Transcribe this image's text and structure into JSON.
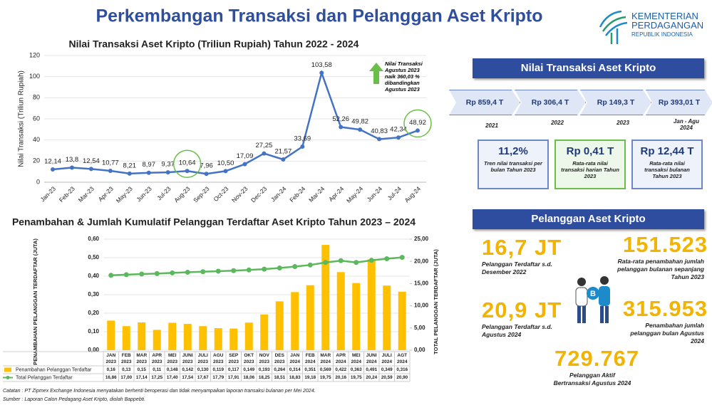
{
  "title": "Perkembangan Transaksi dan Pelanggan Aset Kripto",
  "logo": {
    "lines": [
      "KEMENTERIAN",
      "PERDAGANGAN",
      "REPUBLIK INDONESIA"
    ]
  },
  "chart_data": [
    {
      "type": "line",
      "title": "Nilai Transaksi Aset Kripto (Triliun Rupiah) Tahun 2022 - 2024",
      "y_label": "Nilai Transaksi (Triliun Rupiah)",
      "categories": [
        "Jan-23",
        "Feb-23",
        "Mar-23",
        "Apr-23",
        "May-23",
        "Jun-23",
        "Jul-23",
        "Aug-23",
        "Sep-23",
        "Oct-23",
        "Nov-23",
        "Dec-23",
        "Jan-24",
        "Feb-24",
        "Mar-24",
        "Apr-24",
        "May-24",
        "Jun-24",
        "Jul-24",
        "Aug-24"
      ],
      "series": [
        {
          "name": "Nilai Transaksi",
          "color": "#4472c4",
          "values": [
            12.14,
            13.8,
            12.54,
            10.77,
            8.21,
            8.97,
            9.37,
            10.64,
            7.96,
            10.5,
            17.09,
            27.25,
            21.57,
            33.69,
            103.58,
            52.26,
            49.82,
            40.83,
            42.34,
            48.92
          ],
          "value_labels": [
            "12,14",
            "13,8",
            "12,54",
            "10,77",
            "8,21",
            "8,97",
            "9,37",
            "10,64",
            "7,96",
            "10,50",
            "17,09",
            "27,25",
            "21,57",
            "33,69",
            "103,58",
            "52,26",
            "49,82",
            "40,83",
            "42,34",
            "48,92"
          ]
        }
      ],
      "ylim": [
        0,
        120
      ],
      "yticks": [
        0,
        20,
        40,
        60,
        80,
        100,
        120
      ],
      "grid": true,
      "annotation": [
        "Nilai Transaksi",
        "Agustus 2023",
        "naik 360,03 %",
        "dibandingkan",
        "Agustus 2023"
      ]
    },
    {
      "type": "bar-line",
      "title": "Penambahan & Jumlah Kumulatif Pelanggan Terdaftar Aset Kripto Tahun 2023 – 2024",
      "y_label": "PENAMBAHAN PELANGGAN TERDAFTAR (JUTA)",
      "y2_label": "TOTAL PELANGGAN TERDAFTAR (JUTA)",
      "categories": [
        "JAN 2023",
        "FEB 2023",
        "MAR 2023",
        "APR 2023",
        "MEI 2023",
        "JUNI 2023",
        "JULI 2023",
        "AGU 2023",
        "SEP 2023",
        "OKT 2023",
        "NOV 2023",
        "DES 2023",
        "JAN 2024",
        "FEB 2024",
        "MAR 2024",
        "APR 2024",
        "MEI 2024",
        "JUNI 2024",
        "JULI 2024",
        "AGT 2024"
      ],
      "series": [
        {
          "name": "Penambahan Pelanggan Terdaftar",
          "color": "#ffc000",
          "kind": "bar",
          "values": [
            0.16,
            0.13,
            0.15,
            0.11,
            0.148,
            0.142,
            0.13,
            0.119,
            0.117,
            0.149,
            0.193,
            0.264,
            0.314,
            0.351,
            0.569,
            0.422,
            0.363,
            0.491,
            0.349,
            0.316
          ],
          "value_labels": [
            "0,16",
            "0,13",
            "0,15",
            "0,11",
            "0,148",
            "0,142",
            "0,130",
            "0,119",
            "0,117",
            "0,149",
            "0,193",
            "0,264",
            "0,314",
            "0,351",
            "0,569",
            "0,422",
            "0,363",
            "0,491",
            "0,349",
            "0,316"
          ]
        },
        {
          "name": "Total Pelanggan Terdaftar",
          "color": "#5cb85c",
          "kind": "line",
          "axis": "y2",
          "values": [
            16.86,
            17.0,
            17.14,
            17.25,
            17.4,
            17.54,
            17.67,
            17.79,
            17.91,
            18.06,
            18.25,
            18.51,
            18.83,
            19.18,
            19.75,
            20.16,
            19.75,
            20.24,
            20.59,
            20.9
          ],
          "value_labels": [
            "16,86",
            "17,00",
            "17,14",
            "17,25",
            "17,40",
            "17,54",
            "17,67",
            "17,79",
            "17,91",
            "18,06",
            "18,25",
            "18,51",
            "18,83",
            "19,18",
            "19,75",
            "20,16",
            "19,75",
            "20,24",
            "20,59",
            "20,90"
          ]
        }
      ],
      "ylim": [
        0,
        0.6
      ],
      "yticks": [
        {
          "value": 0,
          "label": "0,00"
        },
        {
          "value": 0.1,
          "label": "0,10"
        },
        {
          "value": 0.2,
          "label": "0,20"
        },
        {
          "value": 0.3,
          "label": "0,30"
        },
        {
          "value": 0.4,
          "label": "0,40"
        },
        {
          "value": 0.5,
          "label": "0,50"
        },
        {
          "value": 0.6,
          "label": "0,60"
        }
      ],
      "y2lim": [
        0,
        25
      ],
      "y2ticks": [
        {
          "value": 0,
          "label": "0,00"
        },
        {
          "value": 5,
          "label": "5,00"
        },
        {
          "value": 10,
          "label": "10,00"
        },
        {
          "value": 15,
          "label": "15,00"
        },
        {
          "value": 20,
          "label": "20,00"
        },
        {
          "value": 25,
          "label": "25,00"
        }
      ],
      "grid": true,
      "legend": "bottom"
    }
  ],
  "transaction_panel": {
    "header": "Nilai Transaksi Aset Kripto",
    "years": [
      {
        "value": "Rp 859,4 T",
        "label": "2021"
      },
      {
        "value": "Rp 306,4 T",
        "label": "2022"
      },
      {
        "value": "Rp 149,3 T",
        "label": "2023"
      },
      {
        "value": "Rp 393,01 T",
        "label": "Jan - Agu 2024"
      }
    ],
    "boxes": [
      {
        "value": "11,2%",
        "label": "Tren nilai transaksi per bulan Tahun 2023"
      },
      {
        "value": "Rp 0,41 T",
        "label": "Rata-rata nilai transaksi harian Tahun 2023"
      },
      {
        "value": "Rp 12,44 T",
        "label": "Rata-rata nilai transaksi bulanan Tahun 2023"
      }
    ]
  },
  "customer_panel": {
    "header": "Pelanggan Aset Kripto",
    "stats": [
      {
        "value": "16,7 JT",
        "label": "Pelanggan Terdaftar s.d. Desember 2022"
      },
      {
        "value": "151.523",
        "label": "Rata-rata penambahan jumlah pelanggan bulanan sepanjang Tahun 2023"
      },
      {
        "value": "20,9 JT",
        "label": "Pelanggan Terdaftar s.d. Agustus 2024"
      },
      {
        "value": "315.953",
        "label": "Penambahan jumlah pelanggan bulan Agustus 2024"
      },
      {
        "value": "729.767",
        "label": "Pelanggan Aktif Bertransaksi Agustus 2024"
      }
    ]
  },
  "notes": [
    "Catatan : PT Zipmex Exchange Indonesia menyatakan berhenti beroperasi dan tidak menyampaikan laporan transaksi bulanan per Mei 2024.",
    "Sumber : Laporan Calon Pedagang Aset Kripto, diolah Bappebti."
  ]
}
